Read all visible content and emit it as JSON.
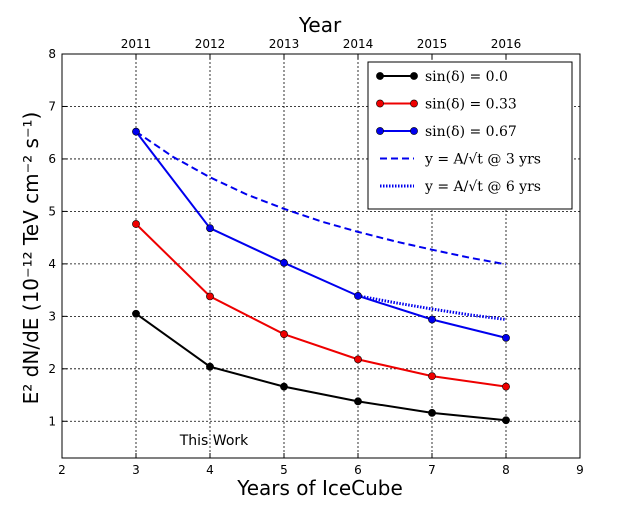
{
  "chart_data": {
    "type": "line",
    "x": [
      3,
      4,
      5,
      6,
      7,
      8
    ],
    "xlim": [
      2,
      9
    ],
    "ylim": [
      0.3,
      8
    ],
    "xticks": [
      "2",
      "3",
      "4",
      "5",
      "6",
      "7",
      "8",
      "9"
    ],
    "xtick_values": [
      2,
      3,
      4,
      5,
      6,
      7,
      8,
      9
    ],
    "yticks": [
      "1",
      "2",
      "3",
      "4",
      "5",
      "6",
      "7",
      "8"
    ],
    "ytick_values": [
      1,
      2,
      3,
      4,
      5,
      6,
      7,
      8
    ],
    "top_axis": {
      "label": "Year",
      "ticks": [
        "2011",
        "2012",
        "2013",
        "2014",
        "2015",
        "2016"
      ],
      "tick_values": [
        3,
        4,
        5,
        6,
        7,
        8
      ]
    },
    "xlabel": "Years of IceCube",
    "ylabel": "E² dN/dE (10⁻¹² TeV cm⁻² s⁻¹)",
    "grid": true,
    "legend_position": "top-right",
    "annotation": "This Work",
    "series": [
      {
        "name": "sin(δ) = 0.0",
        "color": "#000000",
        "style": "solid-marker",
        "x": [
          3,
          4,
          5,
          6,
          7,
          8
        ],
        "values": [
          3.05,
          2.04,
          1.66,
          1.38,
          1.16,
          1.02
        ]
      },
      {
        "name": "sin(δ) = 0.33",
        "color": "#ee0000",
        "style": "solid-marker",
        "x": [
          3,
          4,
          5,
          6,
          7,
          8
        ],
        "values": [
          4.76,
          3.38,
          2.66,
          2.18,
          1.86,
          1.66
        ]
      },
      {
        "name": "sin(δ) = 0.67",
        "color": "#0000ee",
        "style": "solid-marker",
        "x": [
          3,
          4,
          5,
          6,
          7,
          8
        ],
        "values": [
          6.52,
          4.68,
          4.02,
          3.39,
          2.94,
          2.59
        ]
      },
      {
        "name": "y = A/√t @ 3 yrs",
        "color": "#0000ee",
        "style": "dashed",
        "x": [
          3,
          3.5,
          4,
          4.5,
          5,
          5.5,
          6,
          6.5,
          7,
          7.5,
          8
        ],
        "values": [
          6.52,
          6.04,
          5.65,
          5.32,
          5.05,
          4.81,
          4.61,
          4.43,
          4.27,
          4.12,
          3.99
        ]
      },
      {
        "name": "y = A/√t @ 6 yrs",
        "color": "#0000ee",
        "style": "dotted",
        "x": [
          6,
          6.5,
          7,
          7.5,
          8
        ],
        "values": [
          3.39,
          3.26,
          3.14,
          3.03,
          2.94
        ]
      }
    ]
  }
}
